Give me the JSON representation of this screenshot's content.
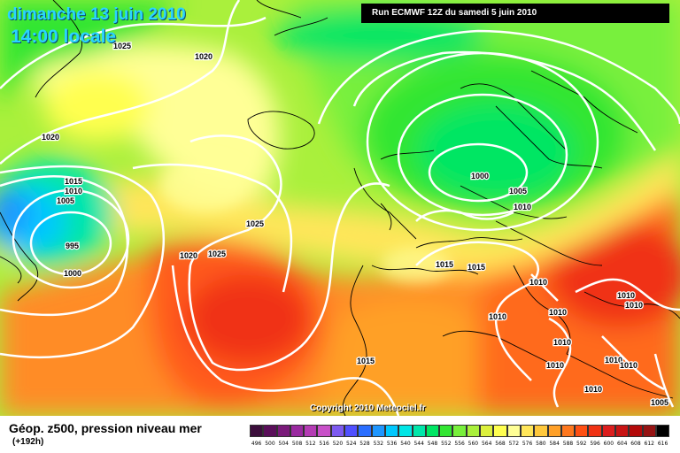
{
  "header": {
    "date_text": "dimanche 13 juin 2010",
    "time_text": "14:00 locale",
    "run_text": "Run ECMWF 12Z du samedi 5 juin 2010"
  },
  "footer": {
    "copyright": "Copyright 2010 Meteociel.fr",
    "legend_title": "Géop. z500, pression niveau mer",
    "legend_sub": "(+192h)"
  },
  "scale": {
    "values": [
      "496",
      "500",
      "504",
      "508",
      "512",
      "516",
      "520",
      "524",
      "528",
      "532",
      "536",
      "540",
      "544",
      "548",
      "552",
      "556",
      "560",
      "564",
      "568",
      "572",
      "576",
      "580",
      "584",
      "588",
      "592",
      "596",
      "600",
      "604",
      "608",
      "612",
      "616"
    ],
    "colors": [
      "#3c0f3c",
      "#5a0f5a",
      "#7a1a7a",
      "#9a2aa0",
      "#b43cb4",
      "#c850c8",
      "#7d5af0",
      "#5050ff",
      "#2a6eff",
      "#1e96ff",
      "#00c8ff",
      "#00e6e6",
      "#00e6aa",
      "#00e664",
      "#32e632",
      "#78f03c",
      "#aaf03c",
      "#dcf03c",
      "#ffff50",
      "#ffff96",
      "#ffe65a",
      "#ffc83c",
      "#ffa028",
      "#ff781e",
      "#ff5014",
      "#f03214",
      "#dc1e1e",
      "#c81414",
      "#b40a0a",
      "#961414",
      "#000000"
    ]
  },
  "pressure_labels": [
    "1025",
    "1020",
    "1020",
    "1015",
    "1010",
    "1005",
    "995",
    "1000",
    "1025",
    "1020",
    "1025",
    "1000",
    "1005",
    "1010",
    "1015",
    "1015",
    "1010",
    "1010",
    "1010",
    "1010",
    "1010",
    "1010",
    "1010",
    "1010",
    "1010",
    "1015",
    "1010",
    "1005"
  ],
  "icons": {
    "map": "weather-map-icon"
  }
}
